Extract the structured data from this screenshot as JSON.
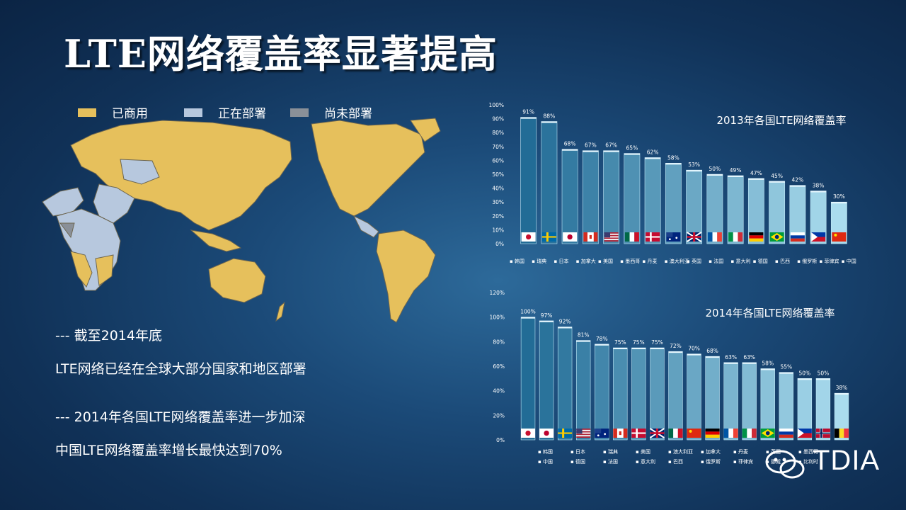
{
  "slide": {
    "title": "LTE网络覆盖率显著提高",
    "legend": [
      {
        "label": "已商用",
        "color": "#e6c05c"
      },
      {
        "label": "正在部署",
        "color": "#b7c8de"
      },
      {
        "label": "尚未部署",
        "color": "#8a9098"
      }
    ],
    "notes": [
      "--- 截至2014年底",
      "LTE网络已经在全球大部分国家和地区部署",
      "--- 2014年各国LTE网络覆盖率进一步加深",
      "中国LTE网络覆盖率增长最快达到70%"
    ],
    "watermark": "TDIA"
  },
  "chart_data": [
    {
      "type": "bar",
      "title": "2013年各国LTE网络覆盖率",
      "categories": [
        "韩国",
        "瑞典",
        "日本",
        "加拿大",
        "美国",
        "墨西哥",
        "丹麦",
        "澳大利亚",
        "英国",
        "法国",
        "意大利",
        "德国",
        "巴西",
        "俄罗斯",
        "菲律宾",
        "中国"
      ],
      "values": [
        91,
        88,
        68,
        67,
        67,
        65,
        62,
        58,
        53,
        50,
        49,
        47,
        45,
        42,
        38,
        30
      ],
      "data_labels": [
        "91%",
        "88%",
        "68%",
        "67%",
        "67%",
        "65%",
        "62%",
        "58%",
        "53%",
        "50%",
        "49%",
        "47%",
        "45%",
        "42%",
        "38%",
        "30%"
      ],
      "yticks": [
        "0%",
        "10%",
        "20%",
        "30%",
        "40%",
        "50%",
        "60%",
        "70%",
        "80%",
        "90%",
        "100%"
      ],
      "ylim": [
        0,
        100
      ],
      "flags": [
        "kr",
        "se",
        "jp",
        "ca",
        "us",
        "mx",
        "dk",
        "au",
        "gb",
        "fr",
        "it",
        "de",
        "br",
        "ru",
        "ph",
        "cn"
      ]
    },
    {
      "type": "bar",
      "title": "2014年各国LTE网络覆盖率",
      "categories": [
        "韩国",
        "日本",
        "瑞典",
        "美国",
        "澳大利亚",
        "加拿大",
        "丹麦",
        "英国",
        "墨西哥",
        "中国",
        "德国",
        "法国",
        "意大利",
        "巴西",
        "俄罗斯",
        "菲律宾",
        "挪威",
        "比利时"
      ],
      "values": [
        100,
        97,
        92,
        81,
        78,
        75,
        75,
        75,
        72,
        70,
        68,
        63,
        63,
        58,
        55,
        50,
        50,
        38
      ],
      "data_labels": [
        "100%",
        "97%",
        "92%",
        "81%",
        "78%",
        "75%",
        "75%",
        "75%",
        "72%",
        "70%",
        "68%",
        "63%",
        "63%",
        "58%",
        "55%",
        "50%",
        "50%",
        "38%"
      ],
      "yticks": [
        "0%",
        "20%",
        "40%",
        "60%",
        "80%",
        "100%",
        "120%"
      ],
      "ylim": [
        0,
        120
      ],
      "legend_rows": [
        [
          "韩国",
          "日本",
          "瑞典",
          "美国",
          "澳大利亚",
          "加拿大",
          "丹麦",
          "英国",
          "墨西哥"
        ],
        [
          "中国",
          "德国",
          "法国",
          "意大利",
          "巴西",
          "俄罗斯",
          "菲律宾",
          "挪威",
          "比利时"
        ]
      ],
      "flags": [
        "kr",
        "jp",
        "se",
        "us",
        "au",
        "ca",
        "dk",
        "gb",
        "mx",
        "cn",
        "de",
        "fr",
        "it",
        "br",
        "ru",
        "ph",
        "no",
        "be"
      ]
    }
  ]
}
